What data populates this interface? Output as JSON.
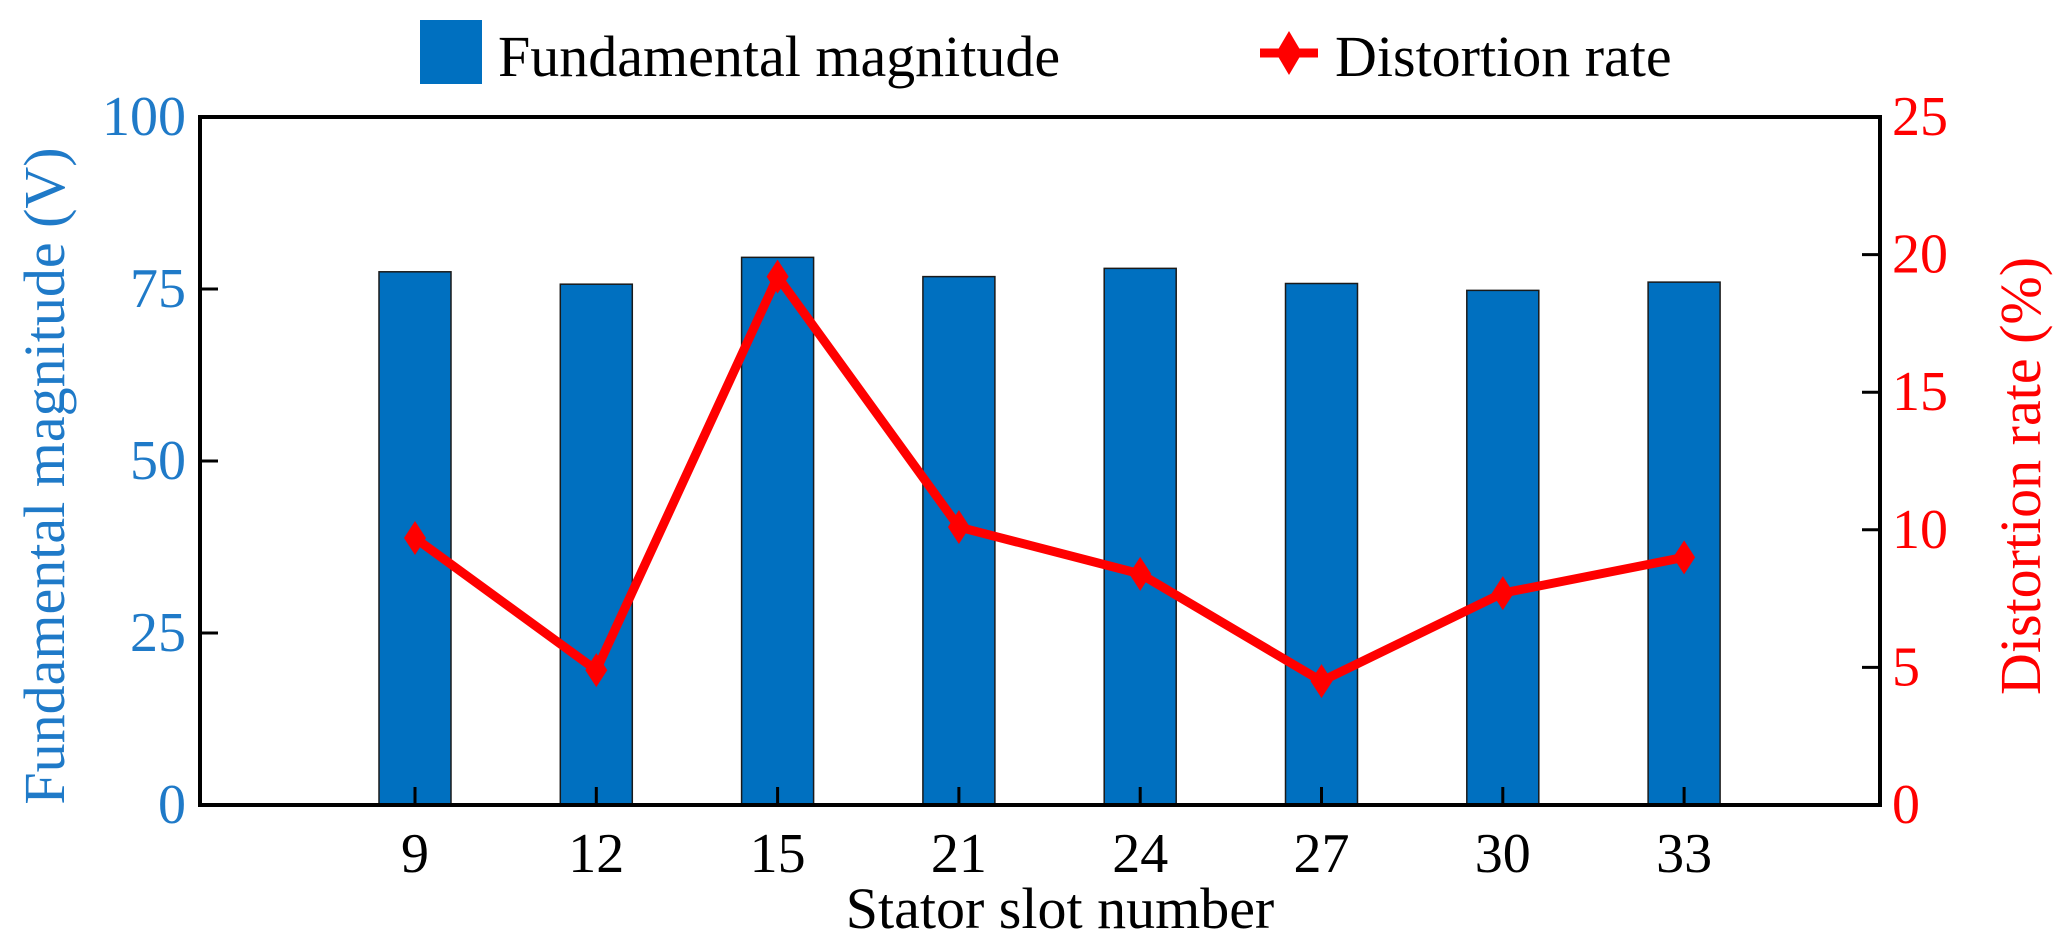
{
  "chart_data": {
    "type": "bar",
    "title": "",
    "xlabel": "Stator slot number",
    "categories": [
      "9",
      "12",
      "15",
      "21",
      "24",
      "27",
      "30",
      "33"
    ],
    "series": [
      {
        "name": "Fundamental magnitude",
        "type": "bar",
        "axis": "left",
        "color": "#0070C0",
        "values": [
          77.5,
          75.7,
          79.6,
          76.8,
          78.0,
          75.8,
          74.8,
          76.0
        ]
      },
      {
        "name": "Distortion rate",
        "type": "line",
        "marker": "diamond",
        "axis": "right",
        "color": "#FF0000",
        "values": [
          9.7,
          4.9,
          19.2,
          10.1,
          8.4,
          4.5,
          7.7,
          9.0
        ]
      }
    ],
    "left_axis": {
      "label": "Fundamental magnitude (V)",
      "ylim": [
        0,
        100
      ],
      "ticks": [
        "0",
        "25",
        "50",
        "75",
        "100"
      ],
      "color": "#1F7AC8"
    },
    "right_axis": {
      "label": "Distortion rate (%)",
      "ylim": [
        0,
        25
      ],
      "ticks": [
        "0",
        "5",
        "10",
        "15",
        "20",
        "25"
      ],
      "color": "#FF0000"
    },
    "grid": false,
    "legend": {
      "position": "top-center",
      "items": [
        "Fundamental magnitude",
        "Distortion rate"
      ]
    }
  }
}
